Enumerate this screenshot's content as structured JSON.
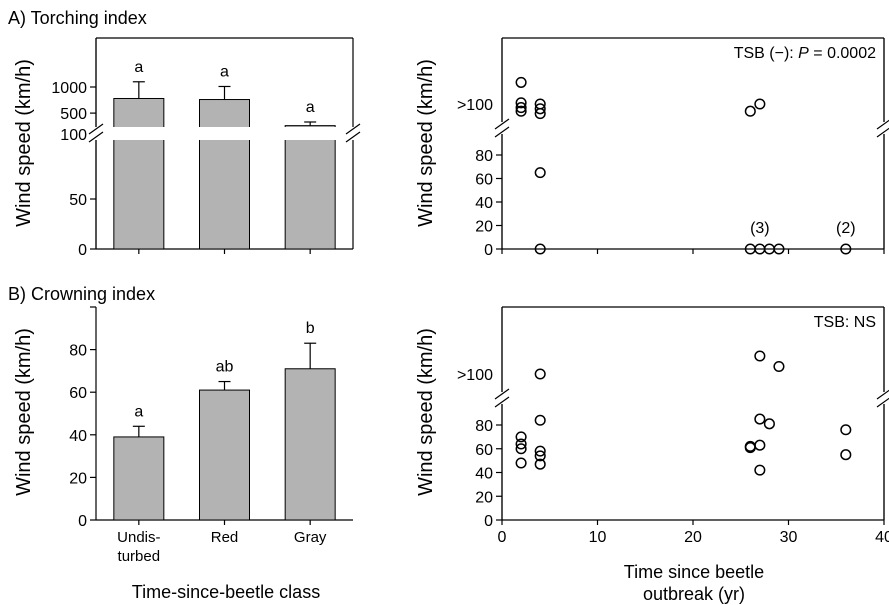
{
  "figure": {
    "panel_a_title": "A) Torching index",
    "panel_b_title": "B) Crowning index",
    "ylabel": "Wind speed (km/h)",
    "bar_xlabel": "Time-since-beetle class",
    "scatter_xlabel_line1": "Time since beetle",
    "scatter_xlabel_line2": "outbreak (yr)",
    "category_labels": [
      "Undis-\nturbed",
      "Red",
      "Gray"
    ]
  },
  "chart_data": [
    {
      "id": "A-bar",
      "type": "bar",
      "title": "A) Torching index",
      "xlabel": "",
      "ylabel": "Wind speed (km/h)",
      "categories": [
        "Undisturbed",
        "Red",
        "Gray"
      ],
      "values": [
        780,
        760,
        260
      ],
      "errors": [
        320,
        250,
        70
      ],
      "letters": [
        "a",
        "a",
        "a"
      ],
      "axis_break": true,
      "lower_ticks": [
        0,
        50,
        100
      ],
      "upper_ticks": [
        100,
        500,
        1000
      ],
      "bar_color": "#b3b3b3"
    },
    {
      "id": "A-scatter",
      "type": "scatter",
      "annotation_prefix": "TSB (−): ",
      "annotation_p": "P",
      "annotation_suffix": " = 0.0002",
      "ylabel": "Wind speed (km/h)",
      "xlim": [
        0,
        40
      ],
      "axis_break": true,
      "lower_ticks": [
        0,
        20,
        40,
        60,
        80
      ],
      "upper_tick_label": ">100",
      "points_low": [
        {
          "x": 4,
          "y": 65
        },
        {
          "x": 4,
          "y": 0
        },
        {
          "x": 26,
          "y": 0
        },
        {
          "x": 27,
          "y": 0
        },
        {
          "x": 28,
          "y": 0
        },
        {
          "x": 29,
          "y": 0
        },
        {
          "x": 36,
          "y": 0
        }
      ],
      "points_high": [
        {
          "x": 2,
          "y": 1.9
        },
        {
          "x": 2,
          "y": 1.05
        },
        {
          "x": 2,
          "y": 0.85
        },
        {
          "x": 2,
          "y": 0.7
        },
        {
          "x": 4,
          "y": 1.0
        },
        {
          "x": 4,
          "y": 0.8
        },
        {
          "x": 4,
          "y": 0.6
        },
        {
          "x": 26,
          "y": 0.7
        },
        {
          "x": 27,
          "y": 1.0
        }
      ],
      "count_labels": [
        {
          "x": 27,
          "y": 0,
          "text": "(3)"
        },
        {
          "x": 36,
          "y": 0,
          "text": "(2)"
        }
      ]
    },
    {
      "id": "B-bar",
      "type": "bar",
      "title": "B) Crowning index",
      "xlabel": "Time-since-beetle class",
      "ylabel": "Wind speed (km/h)",
      "categories": [
        "Undisturbed",
        "Red",
        "Gray"
      ],
      "values": [
        39,
        61,
        71
      ],
      "errors": [
        5,
        4,
        12
      ],
      "letters": [
        "a",
        "ab",
        "b"
      ],
      "ylim": [
        0,
        100
      ],
      "ticks": [
        0,
        20,
        40,
        60,
        80
      ],
      "bar_color": "#b3b3b3"
    },
    {
      "id": "B-scatter",
      "type": "scatter",
      "annotation": "TSB: NS",
      "ylabel": "Wind speed (km/h)",
      "xlabel": "Time since beetle outbreak (yr)",
      "xlim": [
        0,
        40
      ],
      "xticks": [
        0,
        10,
        20,
        30,
        40
      ],
      "axis_break": true,
      "lower_ticks": [
        0,
        20,
        40,
        60,
        80
      ],
      "upper_tick_label": ">100",
      "points_low": [
        {
          "x": 2,
          "y": 70
        },
        {
          "x": 2,
          "y": 64
        },
        {
          "x": 2,
          "y": 60
        },
        {
          "x": 2,
          "y": 48
        },
        {
          "x": 4,
          "y": 84
        },
        {
          "x": 4,
          "y": 58
        },
        {
          "x": 4,
          "y": 54
        },
        {
          "x": 4,
          "y": 47
        },
        {
          "x": 26,
          "y": 62
        },
        {
          "x": 26,
          "y": 61
        },
        {
          "x": 27,
          "y": 63
        },
        {
          "x": 27,
          "y": 42
        },
        {
          "x": 27,
          "y": 85
        },
        {
          "x": 28,
          "y": 81
        },
        {
          "x": 36,
          "y": 76
        },
        {
          "x": 36,
          "y": 55
        }
      ],
      "points_high": [
        {
          "x": 4,
          "y": 1.0
        },
        {
          "x": 27,
          "y": 1.6
        },
        {
          "x": 29,
          "y": 1.25
        }
      ]
    }
  ]
}
